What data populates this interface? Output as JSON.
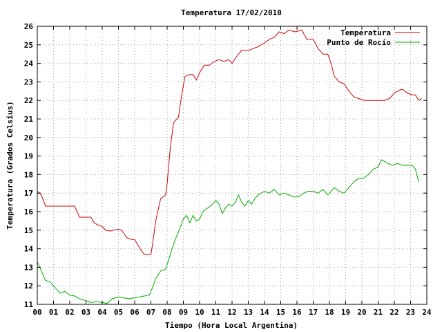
{
  "chart_data": {
    "type": "line",
    "title": "Temperatura 17/02/2010",
    "xlabel": "Tiempo (Hora Local Argentina)",
    "ylabel": "Temperatura (Grados Celsius)",
    "xlim": [
      0,
      24
    ],
    "ylim": [
      11,
      26
    ],
    "x_ticks": [
      "00",
      "01",
      "02",
      "03",
      "04",
      "05",
      "06",
      "07",
      "08",
      "09",
      "10",
      "11",
      "12",
      "13",
      "14",
      "15",
      "16",
      "17",
      "18",
      "19",
      "20",
      "21",
      "22",
      "23",
      "24"
    ],
    "y_ticks": [
      "11",
      "12",
      "13",
      "14",
      "15",
      "16",
      "17",
      "18",
      "19",
      "20",
      "21",
      "22",
      "23",
      "24",
      "25",
      "26"
    ],
    "grid": true,
    "legend_position": "top-right",
    "series": [
      {
        "name": "Temperatura",
        "color": "#cc0000",
        "points": [
          [
            0,
            17.1
          ],
          [
            0.25,
            16.9
          ],
          [
            0.5,
            16.3
          ],
          [
            1,
            16.3
          ],
          [
            1.5,
            16.3
          ],
          [
            2,
            16.3
          ],
          [
            2.3,
            16.3
          ],
          [
            2.5,
            15.9
          ],
          [
            2.6,
            15.7
          ],
          [
            3,
            15.7
          ],
          [
            3.3,
            15.7
          ],
          [
            3.5,
            15.4
          ],
          [
            3.7,
            15.3
          ],
          [
            4,
            15.2
          ],
          [
            4.2,
            15.0
          ],
          [
            4.5,
            14.95
          ],
          [
            4.7,
            15.0
          ],
          [
            5,
            15.05
          ],
          [
            5.2,
            15.0
          ],
          [
            5.5,
            14.6
          ],
          [
            5.8,
            14.5
          ],
          [
            6,
            14.5
          ],
          [
            6.2,
            14.2
          ],
          [
            6.4,
            13.9
          ],
          [
            6.6,
            13.7
          ],
          [
            7,
            13.7
          ],
          [
            7.1,
            14.2
          ],
          [
            7.3,
            15.5
          ],
          [
            7.6,
            16.7
          ],
          [
            7.9,
            16.9
          ],
          [
            8,
            17.5
          ],
          [
            8.2,
            19.5
          ],
          [
            8.4,
            20.8
          ],
          [
            8.7,
            21.1
          ],
          [
            8.9,
            22.3
          ],
          [
            9.1,
            23.3
          ],
          [
            9.4,
            23.4
          ],
          [
            9.6,
            23.4
          ],
          [
            9.8,
            23.1
          ],
          [
            10,
            23.5
          ],
          [
            10.3,
            23.9
          ],
          [
            10.6,
            23.9
          ],
          [
            10.9,
            24.1
          ],
          [
            11.2,
            24.2
          ],
          [
            11.5,
            24.1
          ],
          [
            11.8,
            24.2
          ],
          [
            12,
            24.0
          ],
          [
            12.3,
            24.4
          ],
          [
            12.6,
            24.7
          ],
          [
            13,
            24.7
          ],
          [
            13.3,
            24.8
          ],
          [
            13.6,
            24.9
          ],
          [
            14,
            25.1
          ],
          [
            14.3,
            25.3
          ],
          [
            14.6,
            25.4
          ],
          [
            14.9,
            25.7
          ],
          [
            15.2,
            25.6
          ],
          [
            15.5,
            25.8
          ],
          [
            15.9,
            25.7
          ],
          [
            16.3,
            25.8
          ],
          [
            16.6,
            25.3
          ],
          [
            17,
            25.3
          ],
          [
            17.3,
            24.8
          ],
          [
            17.6,
            24.5
          ],
          [
            17.9,
            24.5
          ],
          [
            18.1,
            24.0
          ],
          [
            18.3,
            23.3
          ],
          [
            18.6,
            23.0
          ],
          [
            18.9,
            22.9
          ],
          [
            19.2,
            22.5
          ],
          [
            19.5,
            22.2
          ],
          [
            19.8,
            22.1
          ],
          [
            20.2,
            22.0
          ],
          [
            20.6,
            22.0
          ],
          [
            21,
            22.0
          ],
          [
            21.4,
            22.0
          ],
          [
            21.7,
            22.1
          ],
          [
            22,
            22.4
          ],
          [
            22.3,
            22.55
          ],
          [
            22.5,
            22.6
          ],
          [
            22.8,
            22.4
          ],
          [
            23.1,
            22.3
          ],
          [
            23.3,
            22.3
          ],
          [
            23.5,
            22.0
          ],
          [
            23.7,
            22.1
          ]
        ]
      },
      {
        "name": "Punto de Rocío",
        "color": "#00aa00",
        "points": [
          [
            0,
            13.3
          ],
          [
            0.25,
            12.8
          ],
          [
            0.5,
            12.3
          ],
          [
            0.8,
            12.2
          ],
          [
            1.1,
            11.9
          ],
          [
            1.4,
            11.6
          ],
          [
            1.7,
            11.7
          ],
          [
            2,
            11.5
          ],
          [
            2.3,
            11.45
          ],
          [
            2.6,
            11.3
          ],
          [
            3,
            11.2
          ],
          [
            3.3,
            11.1
          ],
          [
            3.6,
            11.15
          ],
          [
            4,
            11.1
          ],
          [
            4.3,
            11.05
          ],
          [
            4.6,
            11.3
          ],
          [
            5,
            11.4
          ],
          [
            5.3,
            11.35
          ],
          [
            5.6,
            11.3
          ],
          [
            6,
            11.35
          ],
          [
            6.3,
            11.4
          ],
          [
            6.6,
            11.45
          ],
          [
            6.9,
            11.5
          ],
          [
            7.1,
            11.9
          ],
          [
            7.3,
            12.4
          ],
          [
            7.6,
            12.8
          ],
          [
            7.9,
            12.9
          ],
          [
            8.1,
            13.4
          ],
          [
            8.3,
            14.0
          ],
          [
            8.5,
            14.5
          ],
          [
            8.7,
            14.9
          ],
          [
            9,
            15.6
          ],
          [
            9.2,
            15.8
          ],
          [
            9.4,
            15.4
          ],
          [
            9.6,
            15.8
          ],
          [
            9.8,
            15.5
          ],
          [
            10,
            15.6
          ],
          [
            10.2,
            16.0
          ],
          [
            10.5,
            16.2
          ],
          [
            10.8,
            16.4
          ],
          [
            11,
            16.6
          ],
          [
            11.2,
            16.4
          ],
          [
            11.4,
            15.9
          ],
          [
            11.6,
            16.2
          ],
          [
            11.8,
            16.4
          ],
          [
            12,
            16.3
          ],
          [
            12.2,
            16.5
          ],
          [
            12.4,
            16.9
          ],
          [
            12.6,
            16.5
          ],
          [
            12.8,
            16.3
          ],
          [
            13,
            16.6
          ],
          [
            13.2,
            16.4
          ],
          [
            13.4,
            16.7
          ],
          [
            13.6,
            16.9
          ],
          [
            13.8,
            17.0
          ],
          [
            14,
            17.1
          ],
          [
            14.3,
            17.0
          ],
          [
            14.6,
            17.2
          ],
          [
            14.9,
            16.9
          ],
          [
            15.2,
            17.0
          ],
          [
            15.5,
            16.9
          ],
          [
            15.8,
            16.8
          ],
          [
            16.1,
            16.8
          ],
          [
            16.4,
            17.0
          ],
          [
            16.7,
            17.1
          ],
          [
            17,
            17.1
          ],
          [
            17.3,
            17.0
          ],
          [
            17.6,
            17.2
          ],
          [
            17.9,
            16.9
          ],
          [
            18.1,
            17.1
          ],
          [
            18.3,
            17.3
          ],
          [
            18.6,
            17.1
          ],
          [
            18.9,
            17.0
          ],
          [
            19.2,
            17.3
          ],
          [
            19.5,
            17.6
          ],
          [
            19.8,
            17.8
          ],
          [
            20.1,
            17.8
          ],
          [
            20.4,
            18.0
          ],
          [
            20.7,
            18.3
          ],
          [
            21,
            18.4
          ],
          [
            21.2,
            18.8
          ],
          [
            21.4,
            18.7
          ],
          [
            21.6,
            18.6
          ],
          [
            21.9,
            18.5
          ],
          [
            22.2,
            18.6
          ],
          [
            22.5,
            18.5
          ],
          [
            22.8,
            18.5
          ],
          [
            23.1,
            18.5
          ],
          [
            23.3,
            18.3
          ],
          [
            23.5,
            17.6
          ]
        ]
      }
    ]
  }
}
